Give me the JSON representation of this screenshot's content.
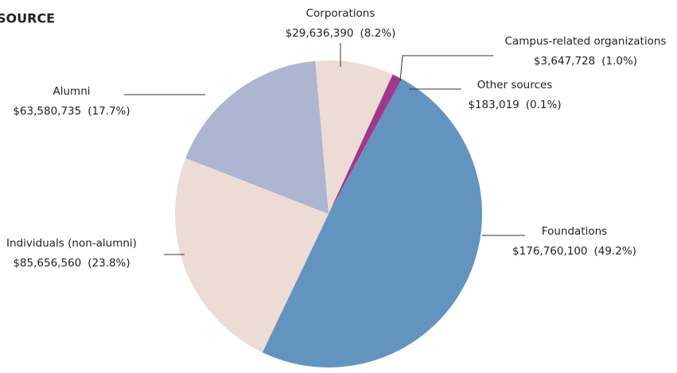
{
  "chart_data": {
    "type": "pie",
    "title": "SOURCE",
    "categories": [
      "Corporations",
      "Campus-related organizations",
      "Other sources",
      "Foundations",
      "Individuals (non-alumni)",
      "Alumni"
    ],
    "values": [
      29636390,
      3647728,
      183019,
      176760100,
      85656560,
      63580735
    ],
    "value_labels": [
      "$29,636,390",
      "$3,647,728",
      "$183,019",
      "$176,760,100",
      "$85,656,560",
      "$63,580,735"
    ],
    "percentages": [
      8.2,
      1.0,
      0.1,
      49.2,
      23.8,
      17.7
    ],
    "percentage_labels": [
      "(8.2%)",
      "(1.0%)",
      "(0.1%)",
      "(49.2%)",
      "(23.8%)",
      "(17.7%)"
    ],
    "colors": [
      "#ecdcd5",
      "#a0388e",
      "#7d3b8e",
      "#6394c0",
      "#ecdcd5",
      "#adb5d0"
    ]
  }
}
